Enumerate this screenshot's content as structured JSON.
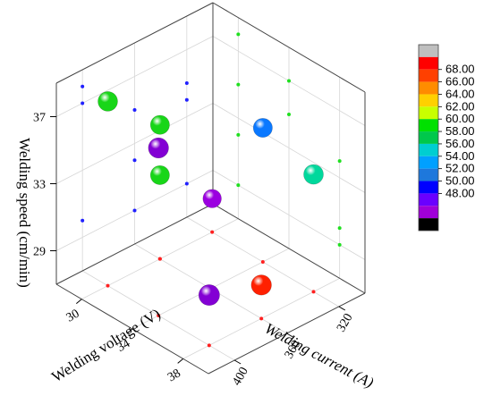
{
  "chart_data": {
    "type": "scatter",
    "title": "",
    "axes": {
      "x": {
        "label": "Welding current (A)",
        "ticks": [
          320,
          360,
          400
        ],
        "range": [
          300,
          420
        ]
      },
      "y": {
        "label": "Welding voltage (V)",
        "ticks": [
          30,
          34,
          38
        ],
        "range": [
          28,
          40
        ]
      },
      "z": {
        "label": "Welding speed (cm/min)",
        "ticks": [
          29,
          33,
          37
        ],
        "range": [
          27,
          39
        ]
      }
    },
    "points": [
      {
        "x": 320,
        "y": 30,
        "z": 29,
        "value": 51
      },
      {
        "x": 360,
        "y": 30,
        "z": 32,
        "value": 61
      },
      {
        "x": 360,
        "y": 30,
        "z": 35,
        "value": 61
      },
      {
        "x": 400,
        "y": 30,
        "z": 38,
        "value": 61
      },
      {
        "x": 400,
        "y": 34,
        "z": 37,
        "value": 50
      },
      {
        "x": 320,
        "y": 34,
        "z": 35,
        "value": 55
      },
      {
        "x": 400,
        "y": 38,
        "z": 30,
        "value": 50
      },
      {
        "x": 320,
        "y": 38,
        "z": 34,
        "value": 58
      },
      {
        "x": 360,
        "y": 38,
        "z": 29,
        "value": 67
      }
    ],
    "colorbar": {
      "labels": [
        "68.00",
        "66.00",
        "64.00",
        "62.00",
        "60.00",
        "58.00",
        "56.00",
        "54.00",
        "52.00",
        "50.00",
        "48.00"
      ],
      "colors": [
        "#bfbfbf",
        "#ff0000",
        "#ff4000",
        "#ff8c00",
        "#ffd000",
        "#c8ff00",
        "#00e000",
        "#00c84b",
        "#00ced1",
        "#00a0ff",
        "#1e78dc",
        "#0000ff",
        "#6a00ff",
        "#a000d8",
        "#000000"
      ]
    },
    "grid": true
  }
}
